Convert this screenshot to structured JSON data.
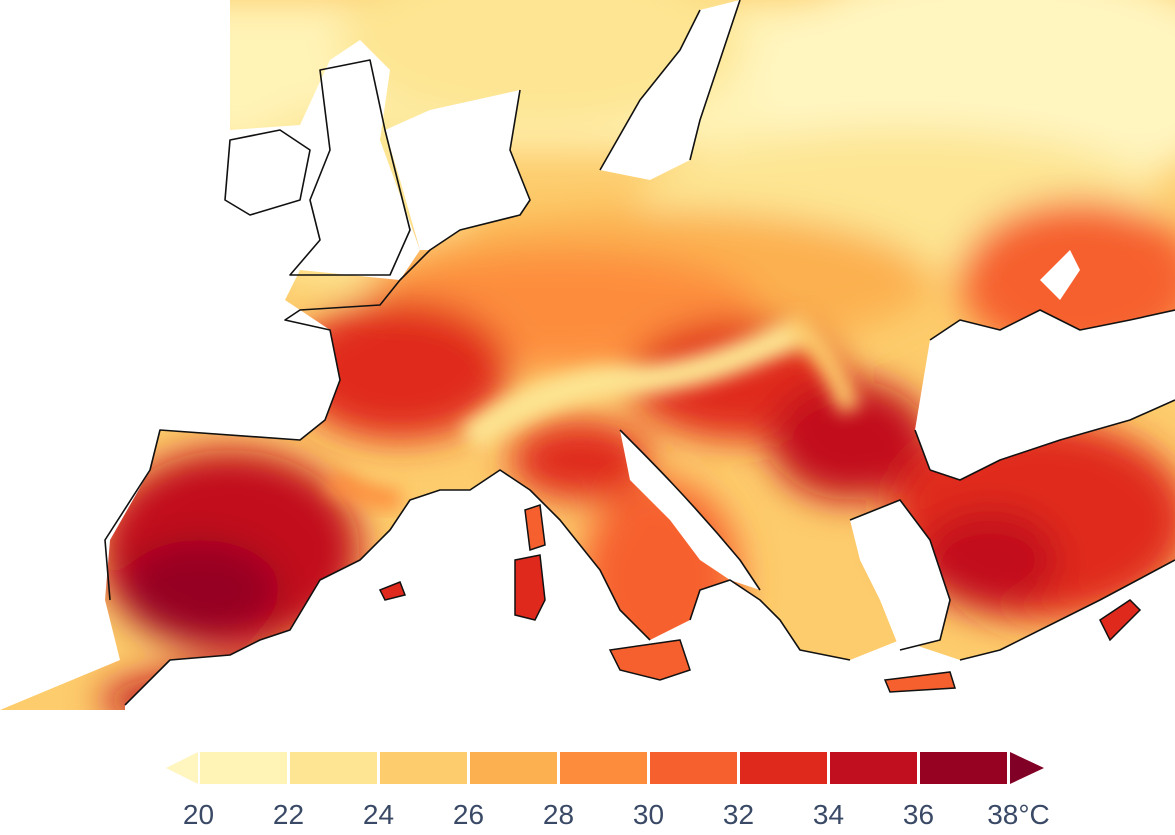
{
  "map": {
    "subject": "temperature map of Europe",
    "colors": {
      "sea": "#ffffff",
      "coast": "#111111",
      "t20": "#fff5bf",
      "t22": "#fde593",
      "t24": "#fdcc6c",
      "t26": "#fcb050",
      "t28": "#fd8d3c",
      "t30": "#f6602f",
      "t32": "#e0291d",
      "t34": "#c20f1f",
      "t36": "#960222"
    }
  },
  "legend": {
    "ticks": [
      "20",
      "22",
      "24",
      "26",
      "28",
      "30",
      "32",
      "34",
      "36",
      "38°C"
    ],
    "bins": [
      {
        "range": "<20",
        "color": "#fff5bf"
      },
      {
        "range": "20-22",
        "color": "#fff3b6"
      },
      {
        "range": "22-24",
        "color": "#fde593"
      },
      {
        "range": "24-26",
        "color": "#fdcc6c"
      },
      {
        "range": "26-28",
        "color": "#fcb050"
      },
      {
        "range": "28-30",
        "color": "#fd8d3c"
      },
      {
        "range": "30-32",
        "color": "#f6602f"
      },
      {
        "range": "32-34",
        "color": "#e0291d"
      },
      {
        "range": "34-36",
        "color": "#c20f1f"
      },
      {
        "range": "36-38",
        "color": "#960222"
      },
      {
        "range": ">38",
        "color": "#800026"
      }
    ]
  }
}
